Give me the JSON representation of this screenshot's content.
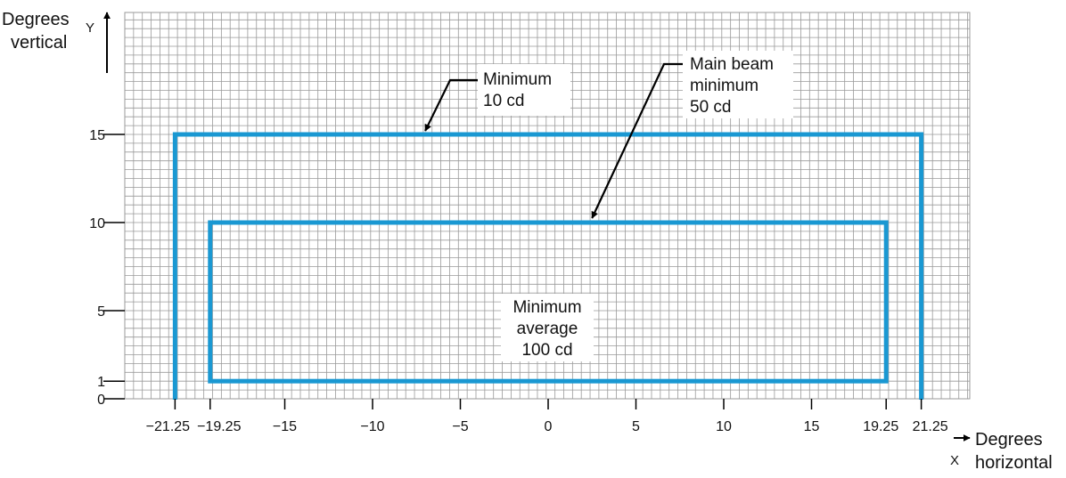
{
  "colors": {
    "zone": "#1a98d2",
    "grid": "#9a9a9a",
    "axis": "#000000",
    "background": "#ffffff"
  },
  "chart_data": {
    "type": "diagram",
    "x_axis": {
      "symbol": "X",
      "label_line1": "Degrees",
      "label_line2": "horizontal",
      "range": [
        -24,
        24
      ],
      "ticks": [
        {
          "value": -21.25,
          "label": "−21.25"
        },
        {
          "value": -19.25,
          "label": "−19.25"
        },
        {
          "value": -15,
          "label": "−15"
        },
        {
          "value": -10,
          "label": "−10"
        },
        {
          "value": -5,
          "label": "−5"
        },
        {
          "value": 0,
          "label": "0"
        },
        {
          "value": 5,
          "label": "5"
        },
        {
          "value": 10,
          "label": "10"
        },
        {
          "value": 15,
          "label": "15"
        },
        {
          "value": 19.25,
          "label": "19.25"
        },
        {
          "value": 21.25,
          "label": "21.25"
        }
      ]
    },
    "y_axis": {
      "symbol": "Y",
      "label_line1": "Degrees",
      "label_line2": "vertical",
      "range": [
        0,
        22
      ],
      "ticks": [
        {
          "value": 0,
          "label": "0"
        },
        {
          "value": 1,
          "label": "1"
        },
        {
          "value": 5,
          "label": "5"
        },
        {
          "value": 10,
          "label": "10"
        },
        {
          "value": 15,
          "label": "15"
        }
      ]
    },
    "zones": [
      {
        "name": "outer-zone",
        "x_min": -21.25,
        "x_max": 21.25,
        "y_min": 0,
        "y_max": 15,
        "open_bottom": true
      },
      {
        "name": "inner-zone",
        "x_min": -19.25,
        "x_max": 19.25,
        "y_min": 1,
        "y_max": 10,
        "open_bottom": false
      }
    ],
    "annotations": [
      {
        "name": "minimum-10cd",
        "lines": [
          "Minimum",
          "10 cd"
        ],
        "target": [
          -7,
          15
        ]
      },
      {
        "name": "main-beam-50cd",
        "lines": [
          "Main beam",
          "minimum",
          "50 cd"
        ],
        "target": [
          2.5,
          10
        ]
      },
      {
        "name": "average-100cd",
        "lines": [
          "Minimum",
          "average",
          "100 cd"
        ]
      }
    ]
  }
}
